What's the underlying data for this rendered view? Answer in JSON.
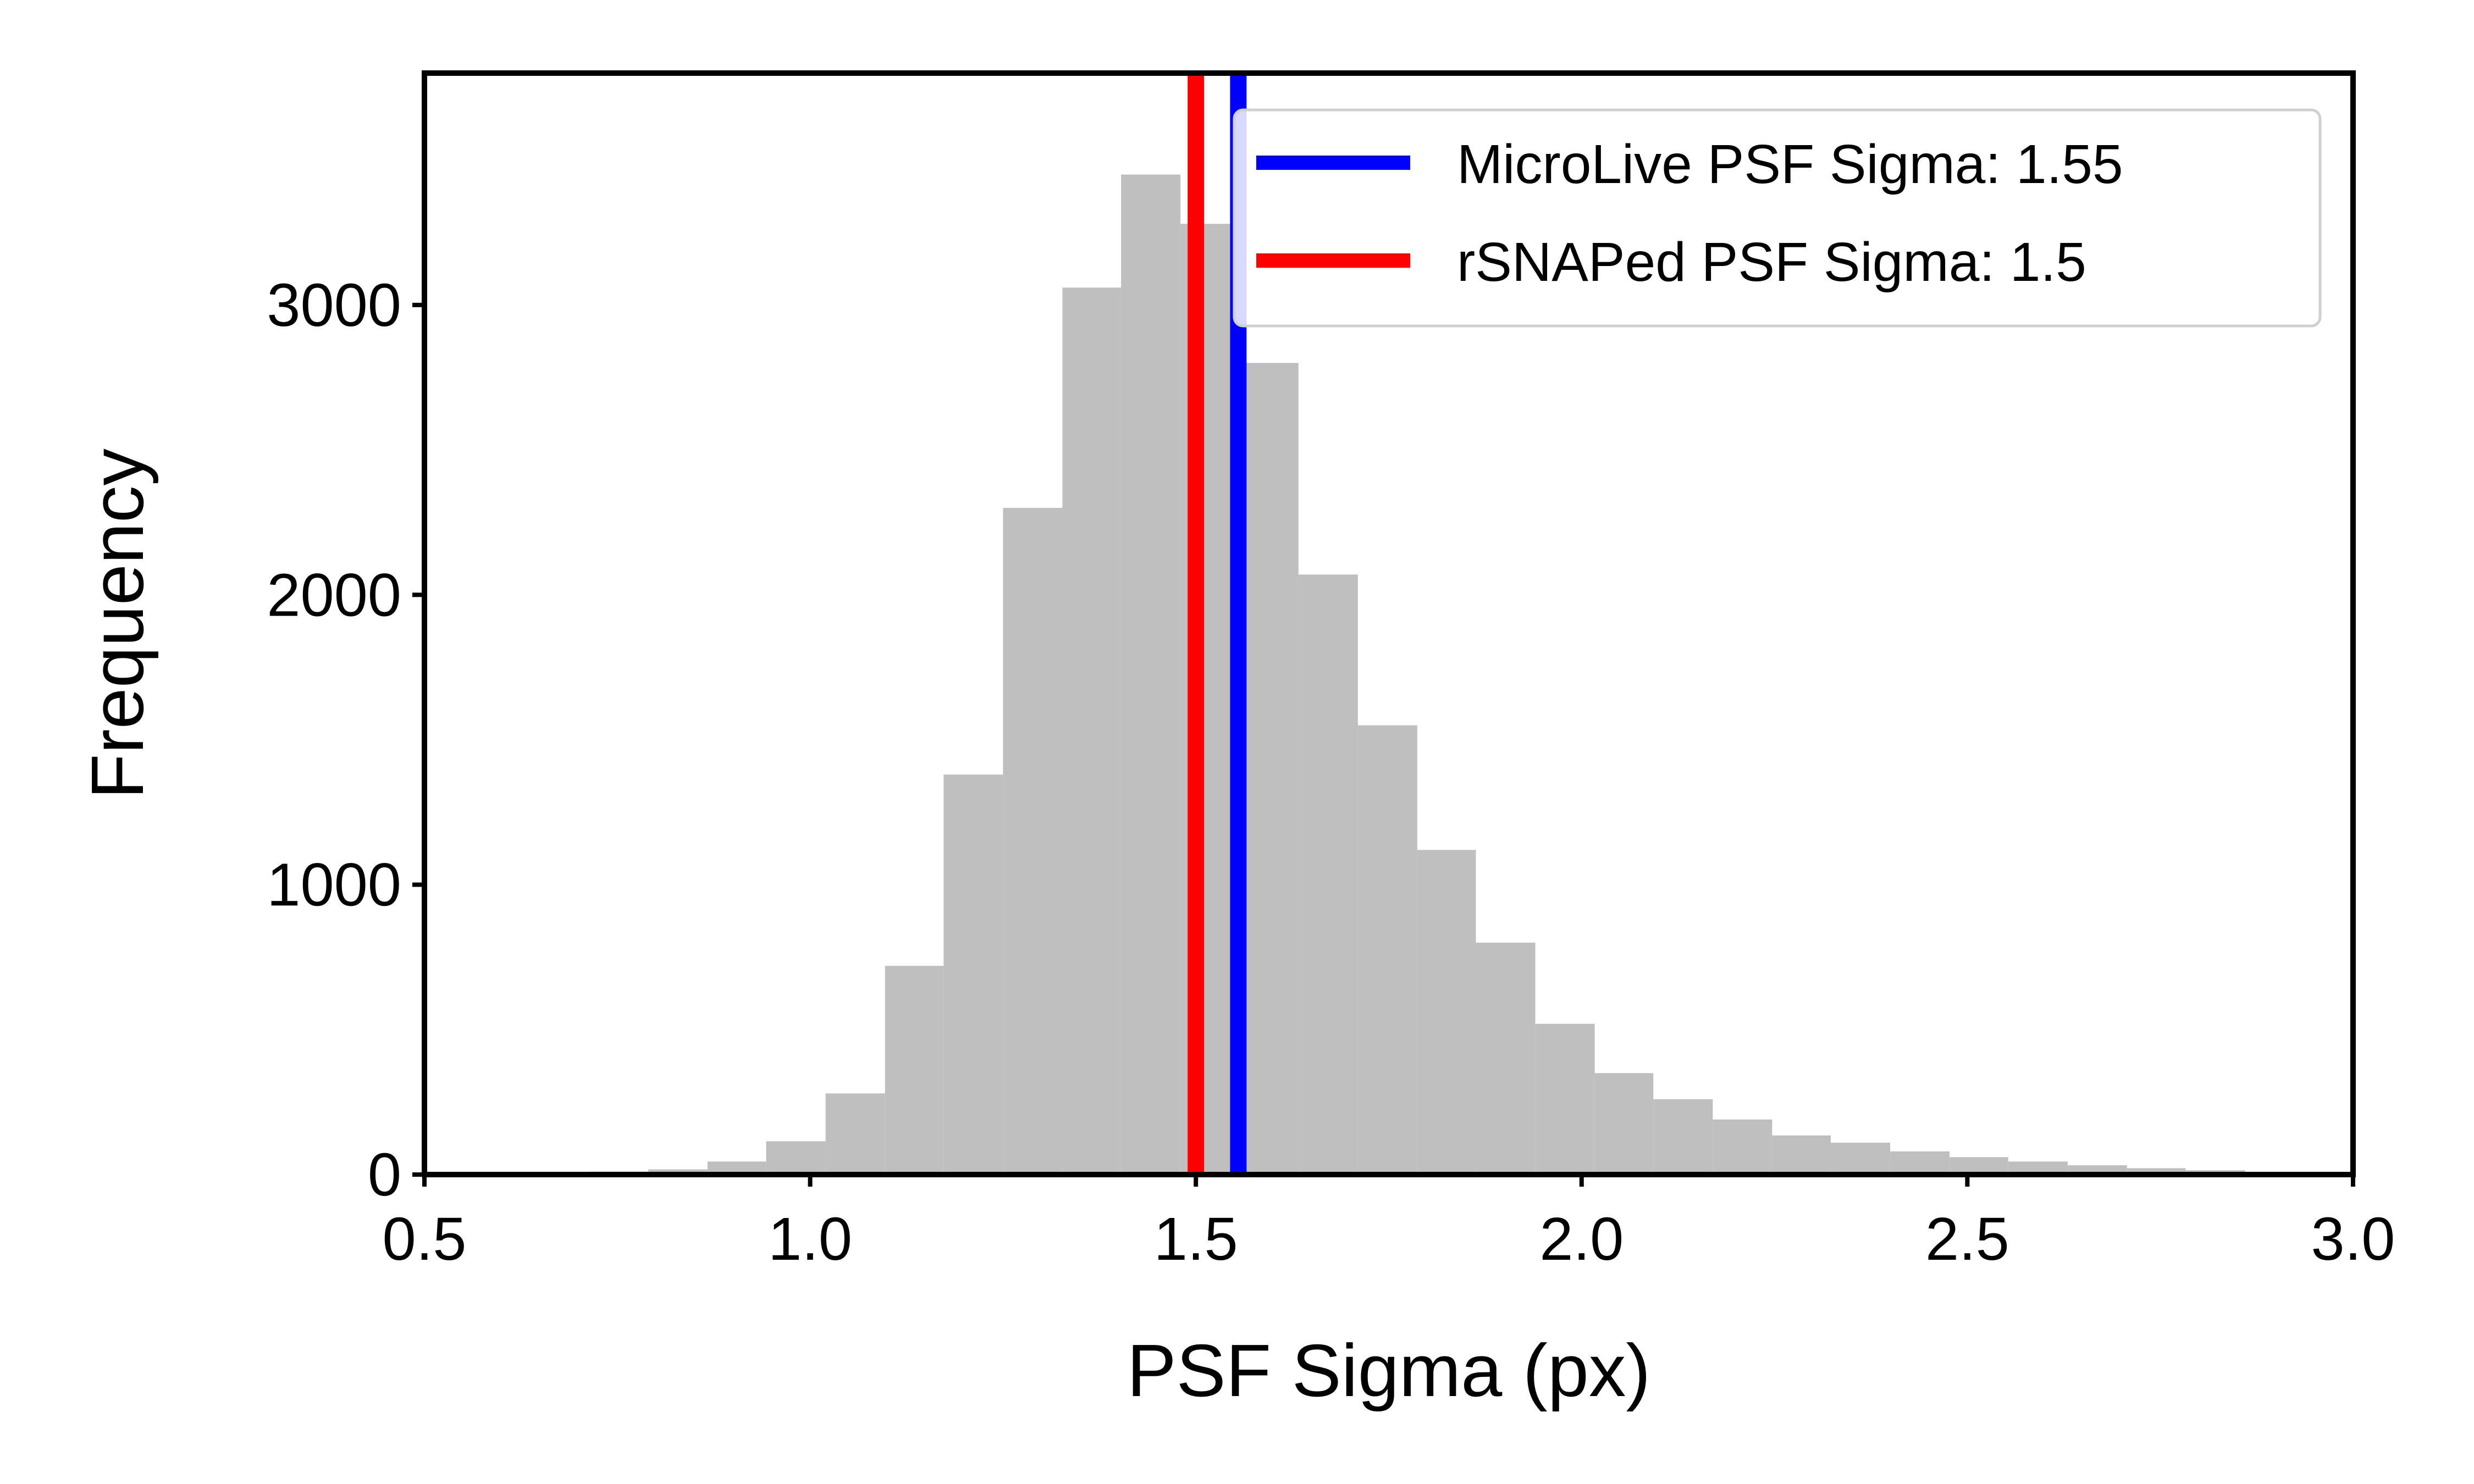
{
  "chart_data": {
    "type": "histogram",
    "xlabel": "PSF Sigma (px)",
    "ylabel": "Frequency",
    "xlim": [
      0.5,
      3.0
    ],
    "ylim": [
      0,
      3800
    ],
    "x_ticks": [
      "0.5",
      "1.0",
      "1.5",
      "2.0",
      "2.5",
      "3.0"
    ],
    "y_ticks": [
      "0",
      "1000",
      "2000",
      "3000"
    ],
    "bar_color": "#bfbfbf",
    "bins": [
      {
        "x0": 0.56,
        "x1": 0.637,
        "value": 2
      },
      {
        "x0": 0.637,
        "x1": 0.713,
        "value": 5
      },
      {
        "x0": 0.713,
        "x1": 0.79,
        "value": 10
      },
      {
        "x0": 0.79,
        "x1": 0.867,
        "value": 18
      },
      {
        "x0": 0.867,
        "x1": 0.943,
        "value": 45
      },
      {
        "x0": 0.943,
        "x1": 1.02,
        "value": 115
      },
      {
        "x0": 1.02,
        "x1": 1.097,
        "value": 280
      },
      {
        "x0": 1.097,
        "x1": 1.173,
        "value": 720
      },
      {
        "x0": 1.173,
        "x1": 1.25,
        "value": 1380
      },
      {
        "x0": 1.25,
        "x1": 1.327,
        "value": 2300
      },
      {
        "x0": 1.327,
        "x1": 1.403,
        "value": 3060
      },
      {
        "x0": 1.403,
        "x1": 1.48,
        "value": 3450
      },
      {
        "x0": 1.48,
        "x1": 1.557,
        "value": 3280
      },
      {
        "x0": 1.557,
        "x1": 1.633,
        "value": 2800
      },
      {
        "x0": 1.633,
        "x1": 1.71,
        "value": 2070
      },
      {
        "x0": 1.71,
        "x1": 1.787,
        "value": 1550
      },
      {
        "x0": 1.787,
        "x1": 1.863,
        "value": 1120
      },
      {
        "x0": 1.863,
        "x1": 1.94,
        "value": 800
      },
      {
        "x0": 1.94,
        "x1": 2.017,
        "value": 520
      },
      {
        "x0": 2.017,
        "x1": 2.093,
        "value": 350
      },
      {
        "x0": 2.093,
        "x1": 2.17,
        "value": 260
      },
      {
        "x0": 2.17,
        "x1": 2.247,
        "value": 190
      },
      {
        "x0": 2.247,
        "x1": 2.323,
        "value": 135
      },
      {
        "x0": 2.323,
        "x1": 2.4,
        "value": 110
      },
      {
        "x0": 2.4,
        "x1": 2.477,
        "value": 80
      },
      {
        "x0": 2.477,
        "x1": 2.553,
        "value": 60
      },
      {
        "x0": 2.553,
        "x1": 2.63,
        "value": 45
      },
      {
        "x0": 2.63,
        "x1": 2.707,
        "value": 32
      },
      {
        "x0": 2.707,
        "x1": 2.783,
        "value": 22
      },
      {
        "x0": 2.783,
        "x1": 2.86,
        "value": 15
      },
      {
        "x0": 2.86,
        "x1": 2.937,
        "value": 8
      }
    ],
    "vlines": [
      {
        "name": "MicroLive PSF Sigma: 1.55",
        "x": 1.555,
        "color": "#0000ff"
      },
      {
        "name": "rSNAPed PSF Sigma: 1.5",
        "x": 1.5,
        "color": "#ff0000"
      }
    ],
    "legend_position": "top-right",
    "grid": false
  }
}
